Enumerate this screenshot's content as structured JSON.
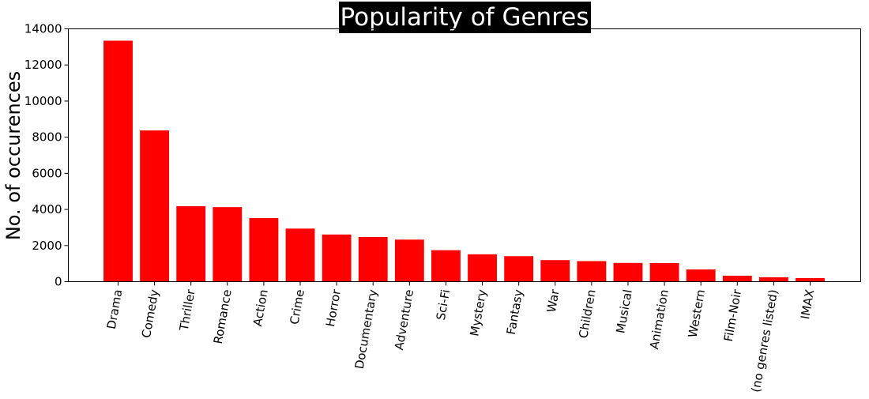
{
  "chart_data": {
    "type": "bar",
    "title": "Popularity of Genres",
    "xlabel": "",
    "ylabel": "No. of occurences",
    "ylim": [
      0,
      14000
    ],
    "yticks": [
      0,
      2000,
      4000,
      6000,
      8000,
      10000,
      12000,
      14000
    ],
    "grid": false,
    "categories": [
      "Drama",
      "Comedy",
      "Thriller",
      "Romance",
      "Action",
      "Crime",
      "Horror",
      "Documentary",
      "Adventure",
      "Sci-Fi",
      "Mystery",
      "Fantasy",
      "War",
      "Children",
      "Musical",
      "Animation",
      "Western",
      "Film-Noir",
      "(no genres listed)",
      "IMAX"
    ],
    "values": [
      13344,
      8374,
      4178,
      4127,
      3520,
      2939,
      2611,
      2471,
      2329,
      1743,
      1514,
      1412,
      1194,
      1139,
      1036,
      1027,
      676,
      330,
      246,
      196
    ],
    "bar_color": "#ff0000"
  }
}
